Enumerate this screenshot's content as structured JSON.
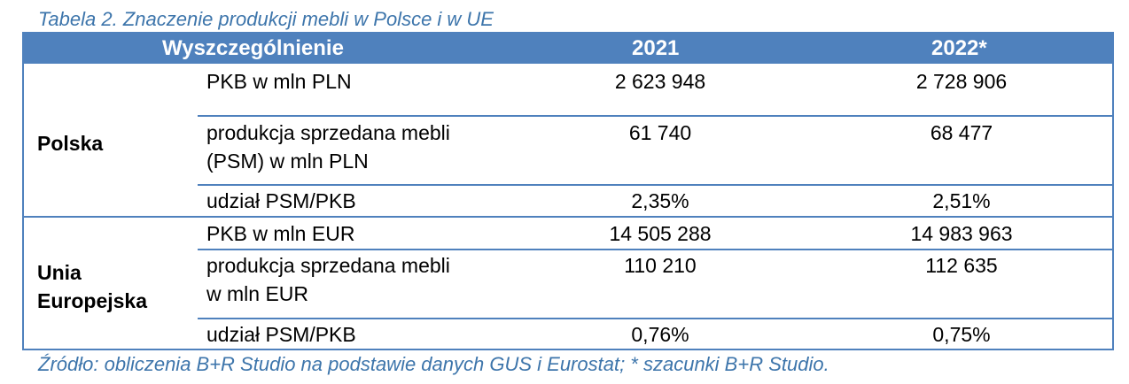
{
  "caption": "Tabela 2. Znaczenie produkcji mebli w Polsce i w UE",
  "header": {
    "col1": "Wyszczególnienie",
    "col2": "2021",
    "col3": "2022*"
  },
  "groups": [
    {
      "name": "Polska",
      "rows": [
        {
          "label": [
            "PKB w mln PLN"
          ],
          "v2021": "2 623 948",
          "v2022": "2 728 906"
        },
        {
          "label": [
            "produkcja sprzedana mebli",
            "(PSM) w mln PLN"
          ],
          "v2021": "61 740",
          "v2022": "68 477"
        },
        {
          "label": [
            "udział PSM/PKB"
          ],
          "v2021": "2,35%",
          "v2022": "2,51%"
        }
      ]
    },
    {
      "name": [
        "Unia",
        "Europejska"
      ],
      "rows": [
        {
          "label": [
            "PKB w mln EUR"
          ],
          "v2021": "14 505 288",
          "v2022": "14 983 963"
        },
        {
          "label": [
            "produkcja sprzedana mebli",
            "w mln EUR"
          ],
          "v2021": "110 210",
          "v2022": "112 635"
        },
        {
          "label": [
            "udział PSM/PKB"
          ],
          "v2021": "0,76%",
          "v2022": "0,75%"
        }
      ]
    }
  ],
  "source": "Źródło: obliczenia B+R Studio na podstawie danych GUS i Eurostat; * szacunki B+R Studio."
}
